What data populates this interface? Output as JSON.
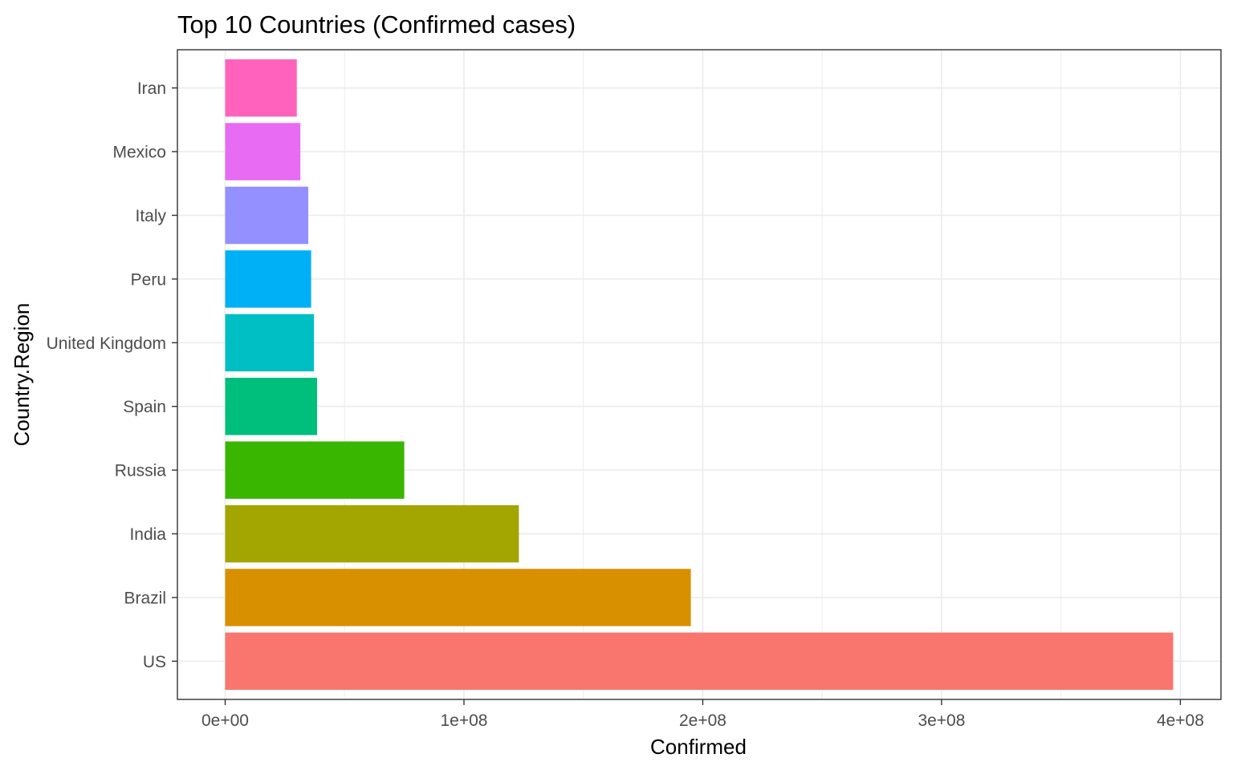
{
  "chart_data": {
    "type": "bar",
    "orientation": "horizontal",
    "title": "Top 10 Countries (Confirmed cases)",
    "xlabel": "Confirmed",
    "ylabel": "Country.Region",
    "categories": [
      "US",
      "Brazil",
      "India",
      "Russia",
      "Spain",
      "United Kingdom",
      "Peru",
      "Italy",
      "Mexico",
      "Iran"
    ],
    "values": [
      397000000,
      195000000,
      123000000,
      75000000,
      38500000,
      37200000,
      36000000,
      34800000,
      31500000,
      30000000
    ],
    "colors": [
      "#F8766D",
      "#D89000",
      "#A3A500",
      "#39B600",
      "#00BF7D",
      "#00BFC4",
      "#00B0F6",
      "#9590FF",
      "#E76BF3",
      "#FF62BC"
    ],
    "xticks": [
      0,
      100000000,
      200000000,
      300000000,
      400000000
    ],
    "xtick_labels": [
      "0e+00",
      "1e+08",
      "2e+08",
      "3e+08",
      "4e+08"
    ],
    "xlim": [
      -20000000,
      417000000
    ],
    "grid": true,
    "legend": "none",
    "theme": "bw"
  }
}
